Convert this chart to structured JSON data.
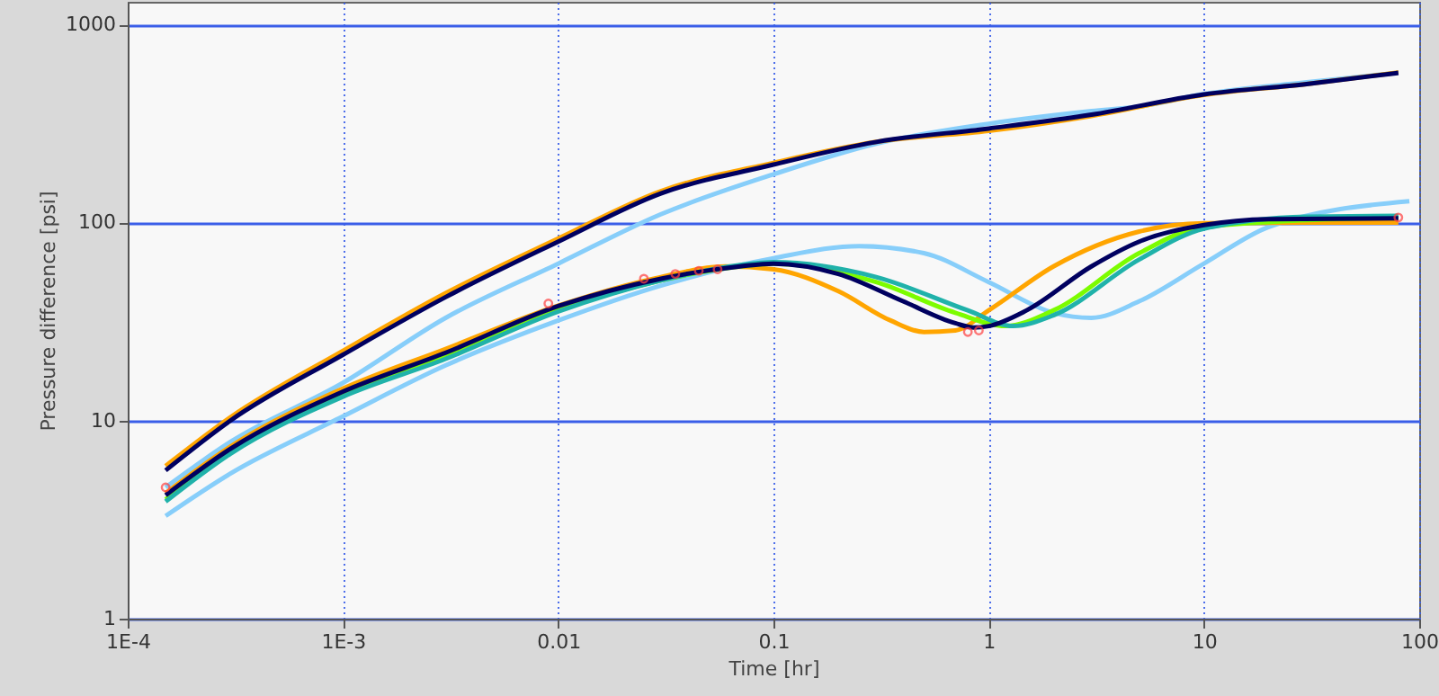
{
  "chart_data": {
    "type": "line",
    "xlabel": "Time [hr]",
    "ylabel": "Pressure difference [psi]",
    "log": "xy",
    "grid": true,
    "xlim": [
      0.0001,
      100
    ],
    "ylim": [
      1,
      1300
    ],
    "xticks": [
      {
        "value": 0.0001,
        "label": "1E-4"
      },
      {
        "value": 0.001,
        "label": "1E-3"
      },
      0.01,
      0.1,
      1,
      10,
      100
    ],
    "yticks": [
      1,
      10,
      100,
      1000
    ],
    "series": [
      {
        "type": "line",
        "color": "#87cefa",
        "x": [
          0.00015,
          0.0003,
          0.001,
          0.003,
          0.01,
          0.03,
          0.1,
          0.3,
          1,
          3,
          5,
          10,
          30,
          80
        ],
        "values": [
          4.6,
          7.8,
          15.5,
          33,
          62,
          110,
          175,
          250,
          315,
          365,
          385,
          445,
          510,
          570
        ]
      },
      {
        "type": "line",
        "color": "#87cefa",
        "x": [
          0.00015,
          0.0003,
          0.001,
          0.003,
          0.01,
          0.03,
          0.1,
          0.25,
          0.5,
          1,
          2,
          3,
          5,
          10,
          20,
          90
        ],
        "values": [
          3.3,
          5.4,
          10.5,
          19,
          32,
          48,
          66,
          76,
          70,
          50,
          35,
          33,
          40,
          62,
          95,
          128
        ]
      },
      {
        "type": "line",
        "color": "#ffa500",
        "x": [
          0.00015,
          0.0003,
          0.001,
          0.003,
          0.01,
          0.03,
          0.1,
          0.3,
          1,
          3,
          10,
          30,
          80
        ],
        "values": [
          5.9,
          10.4,
          22.5,
          44,
          83,
          144,
          200,
          255,
          290,
          345,
          440,
          500,
          572
        ]
      },
      {
        "type": "line",
        "color": "#ffa500",
        "x": [
          0.00015,
          0.0003,
          0.001,
          0.003,
          0.01,
          0.03,
          0.06,
          0.1,
          0.2,
          0.35,
          0.5,
          0.7,
          1,
          2,
          5,
          10,
          30,
          80
        ],
        "values": [
          4.3,
          7.4,
          14.5,
          23,
          38,
          53,
          60,
          58,
          45,
          32,
          28,
          28.5,
          36,
          60,
          90,
          99,
          100,
          100
        ]
      },
      {
        "type": "line",
        "color": "#7cfc00",
        "x": [
          0.00015,
          0.0003,
          0.001,
          0.003,
          0.01,
          0.03,
          0.07,
          0.1,
          0.3,
          0.7,
          1.2,
          2,
          5,
          10,
          80
        ],
        "values": [
          4,
          7,
          13.5,
          21,
          36,
          51,
          60,
          62,
          50,
          35,
          30,
          36,
          70,
          95,
          106
        ]
      },
      {
        "type": "line",
        "color": "#20b2aa",
        "x": [
          0.00015,
          0.0003,
          0.001,
          0.003,
          0.01,
          0.03,
          0.07,
          0.1,
          0.3,
          0.8,
          1.3,
          2,
          5,
          10,
          30,
          80
        ],
        "values": [
          3.9,
          6.8,
          13.2,
          20.5,
          35.5,
          51,
          61,
          63,
          53,
          36,
          30,
          34,
          65,
          93,
          107,
          108
        ]
      },
      {
        "type": "line",
        "color": "#000060",
        "x": [
          0.00015,
          0.0003,
          0.001,
          0.003,
          0.01,
          0.03,
          0.1,
          0.3,
          1,
          3,
          10,
          30,
          80
        ],
        "values": [
          5.6,
          10,
          21.5,
          42,
          80,
          140,
          196,
          255,
          298,
          350,
          443,
          500,
          569
        ]
      },
      {
        "type": "line",
        "color": "#000060",
        "x": [
          0.00015,
          0.0003,
          0.001,
          0.003,
          0.01,
          0.03,
          0.07,
          0.1,
          0.2,
          0.4,
          0.7,
          0.85,
          1,
          1.5,
          3,
          5,
          10,
          20,
          80
        ],
        "values": [
          4.2,
          7.2,
          14,
          22,
          37.8,
          52,
          60,
          62,
          55,
          40,
          31,
          29.5,
          30,
          36,
          60,
          80,
          97,
          104,
          105
        ]
      },
      {
        "type": "scatter",
        "marker": "circle",
        "color": "#ff4040",
        "x": [
          0.00015,
          0.009,
          0.025,
          0.035,
          0.045,
          0.055,
          0.8,
          0.9,
          80
        ],
        "values": [
          4.6,
          39,
          52,
          55,
          57,
          58,
          28,
          28.5,
          106
        ]
      }
    ]
  }
}
